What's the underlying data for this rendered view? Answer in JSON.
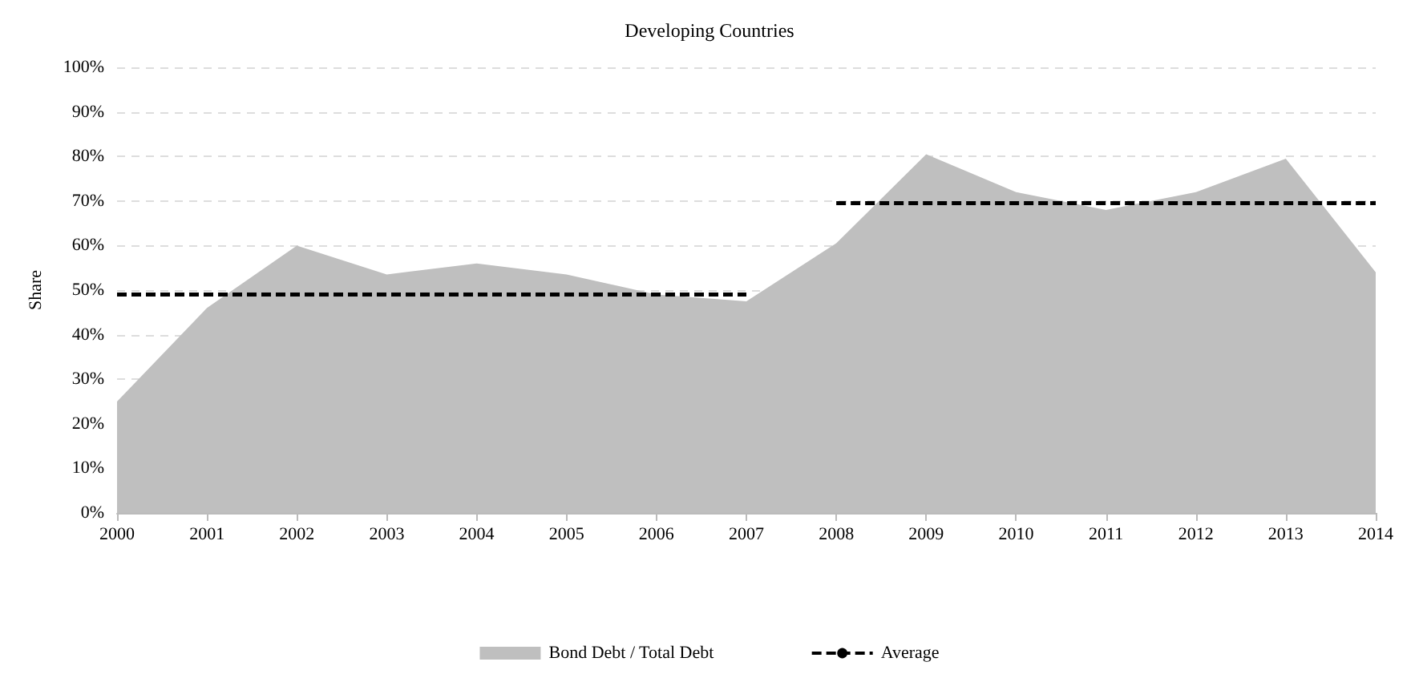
{
  "chart_data": {
    "type": "area",
    "title": "Developing Countries",
    "ylabel": "Share",
    "xlim": [
      2000,
      2014
    ],
    "xticks": [
      2000,
      2001,
      2002,
      2003,
      2004,
      2005,
      2006,
      2007,
      2008,
      2009,
      2010,
      2011,
      2012,
      2013,
      2014
    ],
    "ylim": [
      0,
      100
    ],
    "yticks": [
      {
        "value": 0,
        "label": "0%"
      },
      {
        "value": 10,
        "label": "10%"
      },
      {
        "value": 20,
        "label": "20%"
      },
      {
        "value": 30,
        "label": "30%"
      },
      {
        "value": 40,
        "label": "40%"
      },
      {
        "value": 50,
        "label": "50%"
      },
      {
        "value": 60,
        "label": "60%"
      },
      {
        "value": 70,
        "label": "70%"
      },
      {
        "value": 80,
        "label": "80%"
      },
      {
        "value": 90,
        "label": "90%"
      },
      {
        "value": 100,
        "label": "100%"
      }
    ],
    "grid": "y",
    "legend": "bottom",
    "marker": "none",
    "series": [
      {
        "name": "Bond Debt / Total Debt",
        "color": "#bfbfbf",
        "x": [
          2000,
          2001,
          2002,
          2003,
          2004,
          2005,
          2006,
          2007,
          2008,
          2009,
          2010,
          2011,
          2012,
          2013,
          2014
        ],
        "values": [
          25,
          46,
          60,
          53.5,
          56,
          53.5,
          49,
          47.5,
          60.5,
          80.5,
          72,
          68,
          72,
          79.5,
          54
        ]
      },
      {
        "name": "Average",
        "type": "line",
        "line_style": "dashed",
        "color": "#000000",
        "x": [
          2000,
          2007,
          2007.5,
          2008,
          2014
        ],
        "values": [
          49,
          49,
          null,
          69.5,
          69.5
        ]
      }
    ]
  }
}
